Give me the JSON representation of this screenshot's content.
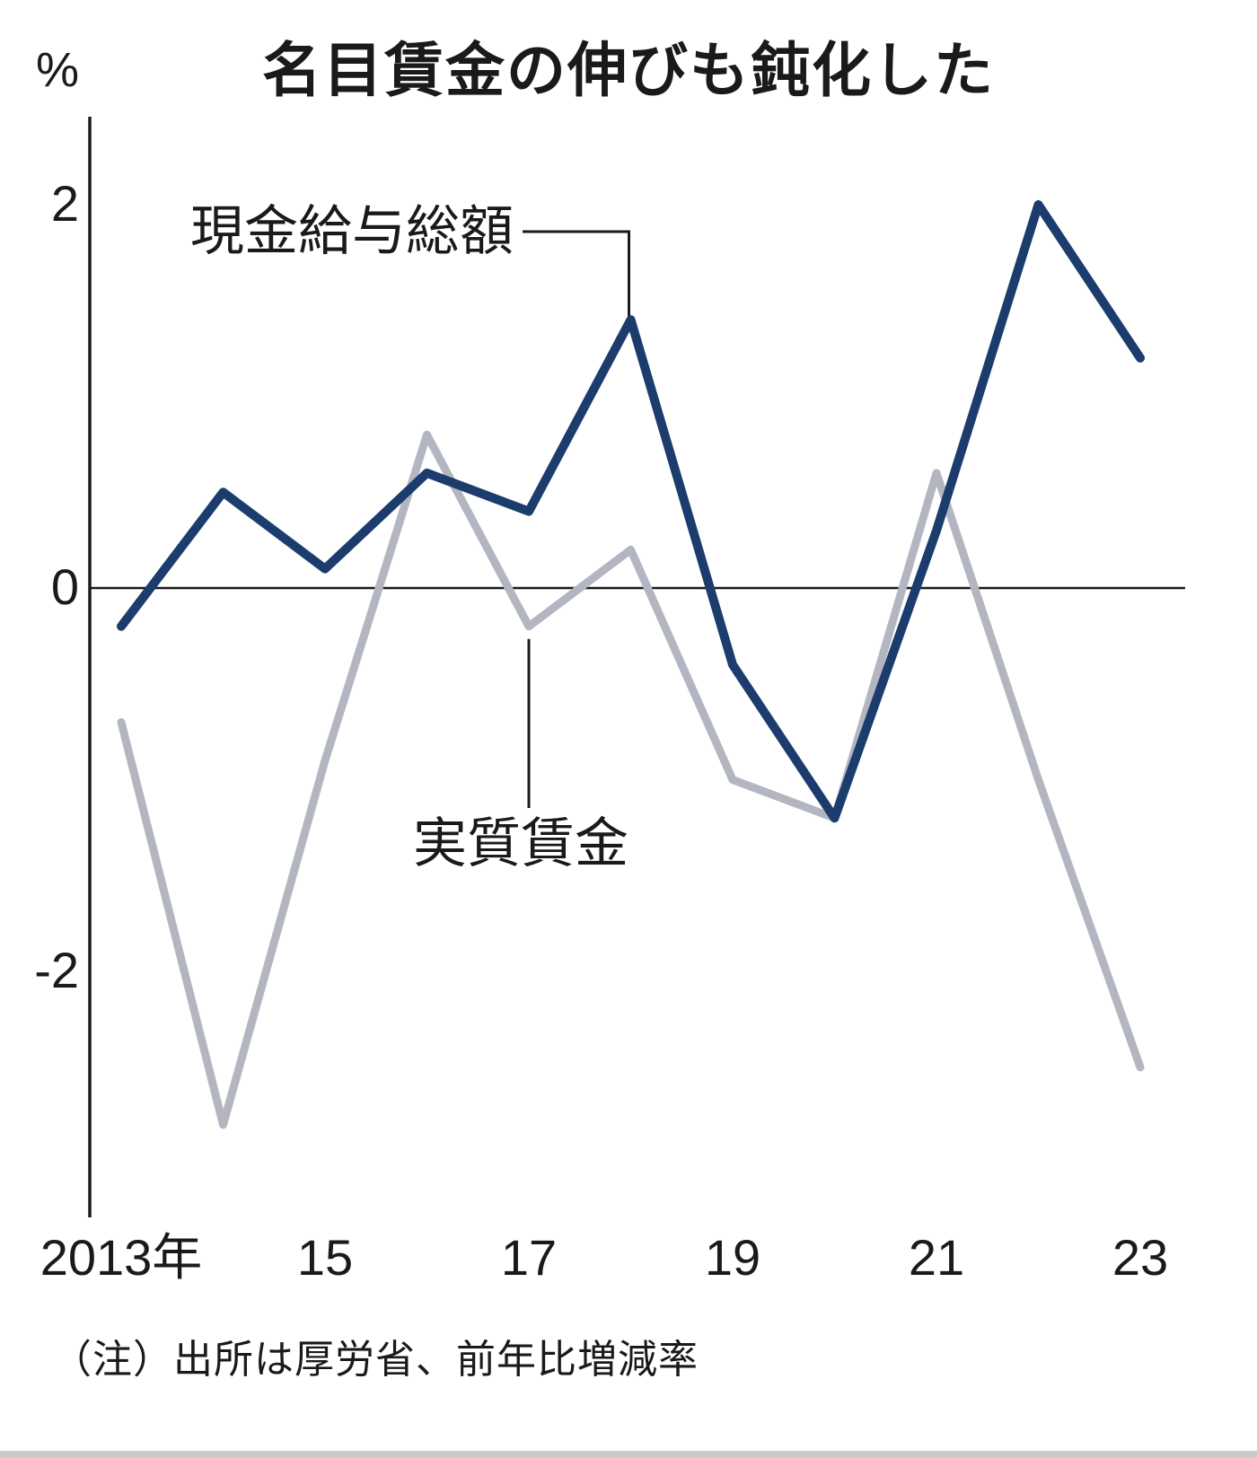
{
  "page": {
    "title": "名目賃金の伸びも鈍化した",
    "unit_label": "%",
    "note": "（注）出所は厚労省、前年比増減率"
  },
  "chart_data": {
    "type": "line",
    "title": "名目賃金の伸びも鈍化した",
    "ylabel": "%",
    "xlabel": "",
    "grid": false,
    "legend_position": "annotated-inline",
    "x": [
      2013,
      2014,
      2015,
      2016,
      2017,
      2018,
      2019,
      2020,
      2021,
      2022,
      2023
    ],
    "x_ticks": [
      {
        "x": 2013,
        "label": "2013年"
      },
      {
        "x": 2015,
        "label": "15"
      },
      {
        "x": 2017,
        "label": "17"
      },
      {
        "x": 2019,
        "label": "19"
      },
      {
        "x": 2021,
        "label": "21"
      },
      {
        "x": 2023,
        "label": "23"
      }
    ],
    "y_ticks": [
      {
        "value": 2,
        "label": "2"
      },
      {
        "value": 0,
        "label": "0"
      },
      {
        "value": -2,
        "label": "-2"
      }
    ],
    "ylim": [
      -3.3,
      2.5
    ],
    "series": [
      {
        "name": "現金給与総額",
        "color": "#1b3c6d",
        "values": [
          -0.2,
          0.5,
          0.1,
          0.6,
          0.4,
          1.4,
          -0.4,
          -1.2,
          0.3,
          2.0,
          1.2
        ]
      },
      {
        "name": "実質賃金",
        "color": "#b3b6c1",
        "values": [
          -0.7,
          -2.8,
          -0.9,
          0.8,
          -0.2,
          0.2,
          -1.0,
          -1.2,
          0.6,
          -1.0,
          -2.5
        ]
      }
    ],
    "note": "（注）出所は厚労省、前年比増減率"
  }
}
